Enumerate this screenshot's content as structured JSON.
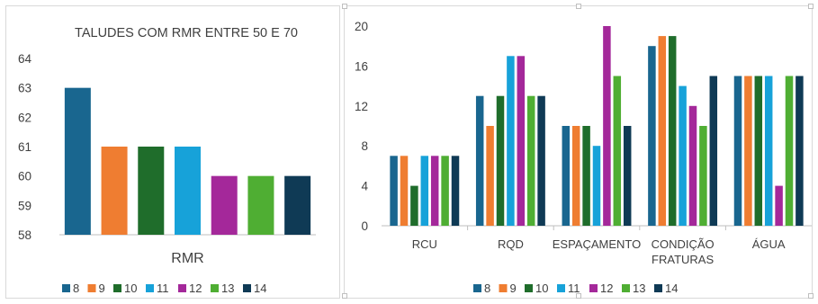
{
  "palette": {
    "8": "#19668f",
    "9": "#ef7d31",
    "10": "#1f6d2b",
    "11": "#17a2d9",
    "12": "#a4289a",
    "13": "#4fae33",
    "14": "#0f3a55"
  },
  "chart_data": [
    {
      "type": "bar",
      "title": "TALUDES COM RMR ENTRE 50 E 70",
      "categories": [
        "RMR"
      ],
      "ylim": [
        58,
        64
      ],
      "yticks": [
        58,
        59,
        60,
        61,
        62,
        63,
        64
      ],
      "grid": false,
      "legend": "bottom",
      "series": [
        {
          "name": "8",
          "values": [
            63
          ]
        },
        {
          "name": "9",
          "values": [
            61
          ]
        },
        {
          "name": "10",
          "values": [
            61
          ]
        },
        {
          "name": "11",
          "values": [
            61
          ]
        },
        {
          "name": "12",
          "values": [
            60
          ]
        },
        {
          "name": "13",
          "values": [
            60
          ]
        },
        {
          "name": "14",
          "values": [
            60
          ]
        }
      ]
    },
    {
      "type": "bar",
      "title": "",
      "categories": [
        "RCU",
        "RQD",
        "ESPAÇAMENTO",
        "CONDIÇÃO FRATURAS",
        "ÁGUA"
      ],
      "ylim": [
        0,
        20
      ],
      "yticks": [
        0,
        4,
        8,
        12,
        16,
        20
      ],
      "grid": false,
      "legend": "bottom",
      "series": [
        {
          "name": "8",
          "values": [
            7,
            13,
            10,
            18,
            15
          ]
        },
        {
          "name": "9",
          "values": [
            7,
            10,
            10,
            19,
            15
          ]
        },
        {
          "name": "10",
          "values": [
            4,
            13,
            10,
            19,
            15
          ]
        },
        {
          "name": "11",
          "values": [
            7,
            17,
            8,
            14,
            15
          ]
        },
        {
          "name": "12",
          "values": [
            7,
            17,
            20,
            12,
            4
          ]
        },
        {
          "name": "13",
          "values": [
            7,
            13,
            15,
            10,
            15
          ]
        },
        {
          "name": "14",
          "values": [
            7,
            13,
            10,
            15,
            15
          ]
        }
      ]
    }
  ]
}
